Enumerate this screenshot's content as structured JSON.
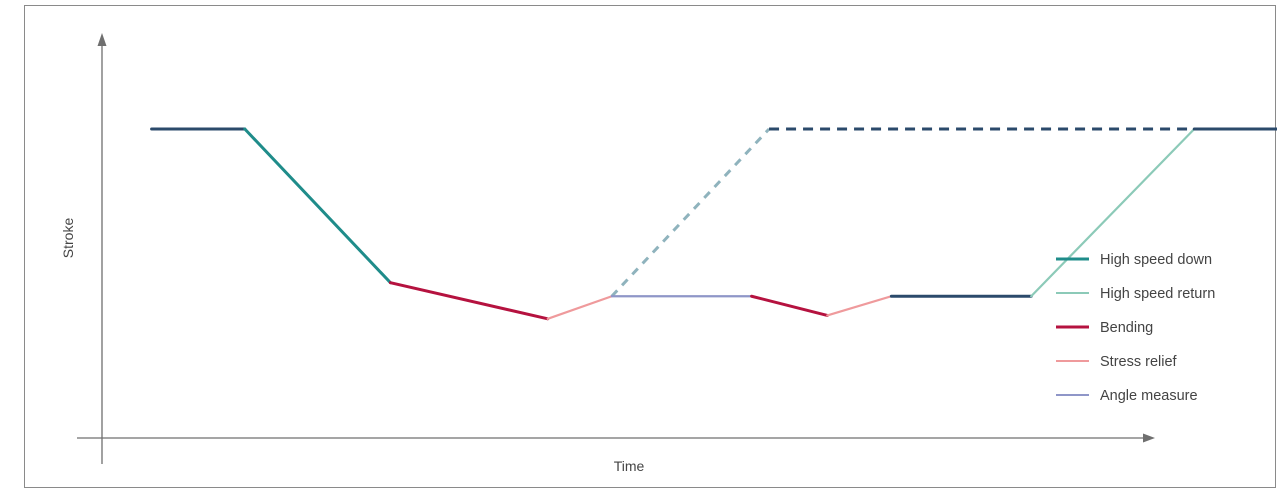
{
  "chart_data": {
    "type": "line",
    "title": "",
    "xlabel": "Time",
    "ylabel": "Stroke",
    "grid": false,
    "legend_position": "right",
    "colors": {
      "axis": "#6f6f6f",
      "high_speed_down": "#1f8c8a",
      "high_speed_return": "#8ccab8",
      "bending": "#b5123f",
      "stress_relief": "#ef9a9c",
      "angle_measure": "#8f96c8",
      "hold": "#2b4a6b",
      "return_dashed": "#8fb3bd",
      "hold_dashed": "#2b4a6b"
    },
    "legend": [
      {
        "label": "High speed down",
        "key": "high_speed_down"
      },
      {
        "label": "High speed return",
        "key": "high_speed_return"
      },
      {
        "label": "Bending",
        "key": "bending"
      },
      {
        "label": "Stress relief",
        "key": "stress_relief"
      },
      {
        "label": "Angle measure",
        "key": "angle_measure"
      }
    ],
    "xlim": [
      0,
      100
    ],
    "ylim": [
      0,
      100
    ],
    "segments": [
      {
        "phase": "hold",
        "dashed": false,
        "points": [
          [
            4,
            100
          ],
          [
            12,
            100
          ]
        ]
      },
      {
        "phase": "high_speed_down",
        "dashed": false,
        "points": [
          [
            12,
            100
          ],
          [
            24.5,
            32
          ]
        ]
      },
      {
        "phase": "bending",
        "dashed": false,
        "points": [
          [
            24.5,
            32
          ],
          [
            38,
            16
          ]
        ]
      },
      {
        "phase": "stress_relief",
        "dashed": false,
        "points": [
          [
            38,
            16
          ],
          [
            43.5,
            26
          ]
        ]
      },
      {
        "phase": "return_dashed",
        "dashed": true,
        "points": [
          [
            43.5,
            26
          ],
          [
            57,
            100
          ]
        ]
      },
      {
        "phase": "hold_dashed",
        "dashed": true,
        "points": [
          [
            57,
            100
          ],
          [
            93.5,
            100
          ]
        ]
      },
      {
        "phase": "angle_measure",
        "dashed": false,
        "points": [
          [
            43.5,
            26
          ],
          [
            55.5,
            26
          ]
        ]
      },
      {
        "phase": "bending",
        "dashed": false,
        "points": [
          [
            55.5,
            26
          ],
          [
            62,
            17.5
          ]
        ]
      },
      {
        "phase": "stress_relief",
        "dashed": false,
        "points": [
          [
            62,
            17.5
          ],
          [
            67.5,
            26
          ]
        ]
      },
      {
        "phase": "hold",
        "dashed": false,
        "points": [
          [
            67.5,
            26
          ],
          [
            79.5,
            26
          ]
        ]
      },
      {
        "phase": "high_speed_return",
        "dashed": false,
        "points": [
          [
            79.5,
            26
          ],
          [
            93.5,
            100
          ]
        ]
      },
      {
        "phase": "hold",
        "dashed": false,
        "points": [
          [
            93.5,
            100
          ],
          [
            105,
            100
          ]
        ]
      }
    ]
  }
}
